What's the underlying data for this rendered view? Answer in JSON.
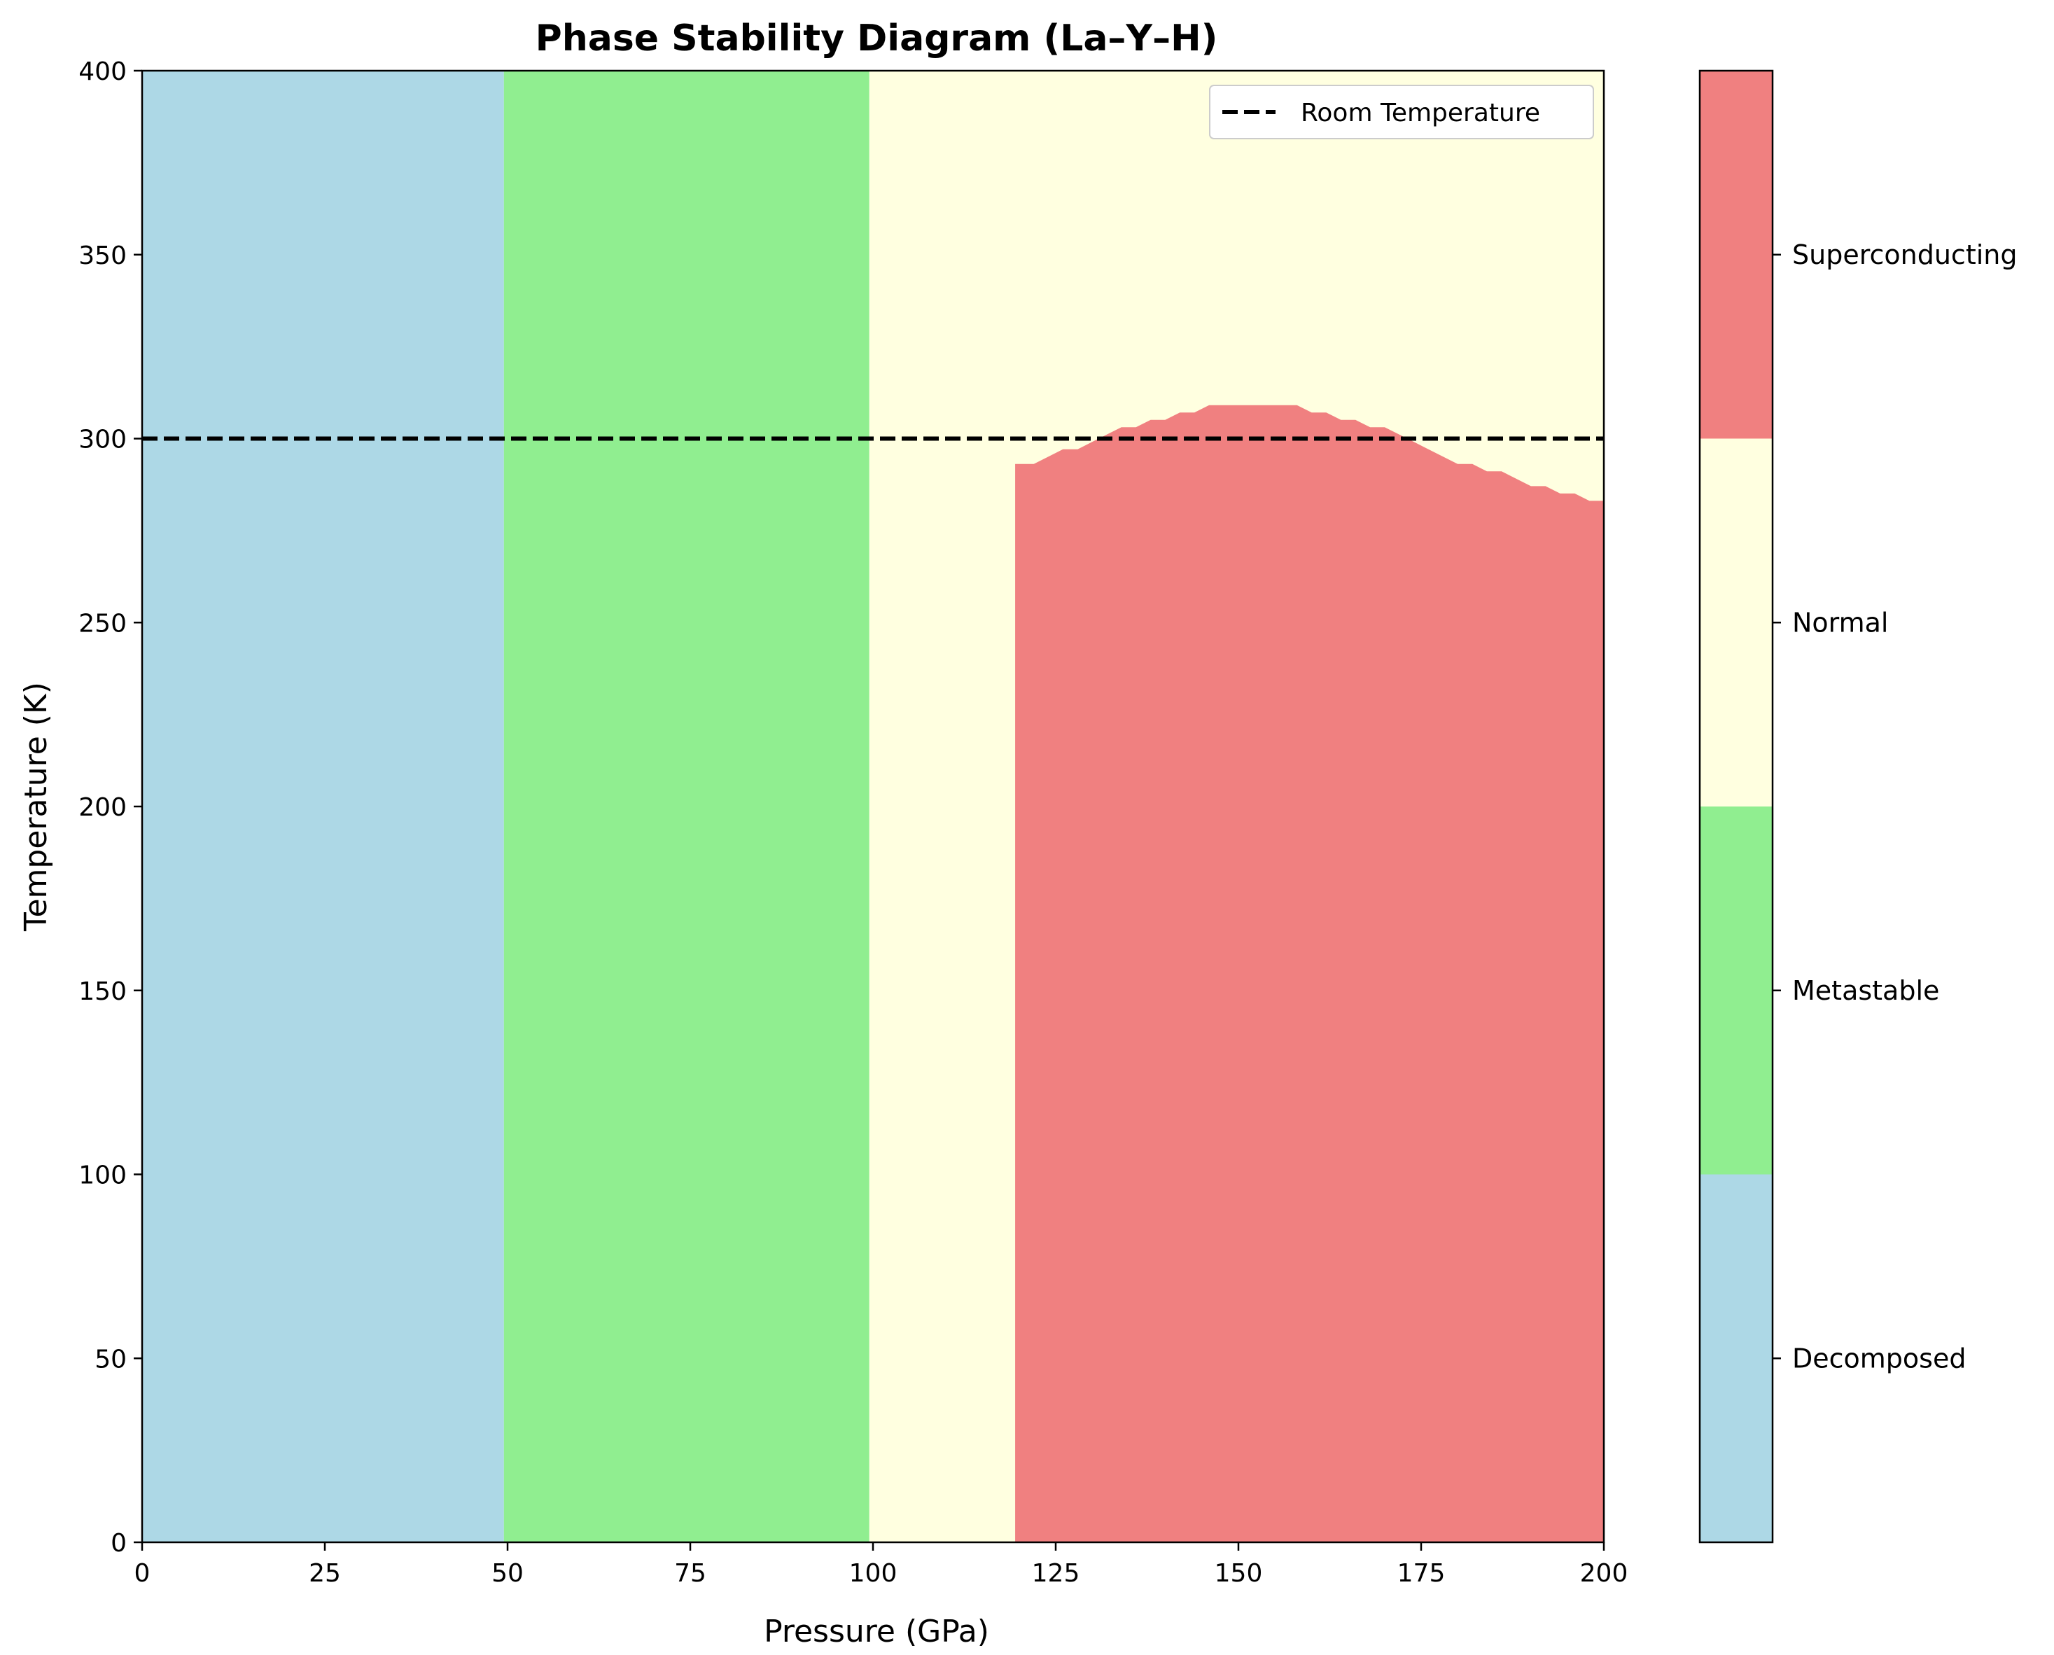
{
  "chart_data": {
    "type": "heatmap",
    "title": "Phase Stability Diagram (La–Y–H)",
    "xlabel": "Pressure (GPa)",
    "ylabel": "Temperature (K)",
    "xlim": [
      0,
      200
    ],
    "ylim": [
      0,
      400
    ],
    "x_ticks": [
      0,
      25,
      50,
      75,
      100,
      125,
      150,
      175,
      200
    ],
    "y_ticks": [
      0,
      50,
      100,
      150,
      200,
      250,
      300,
      350,
      400
    ],
    "grid": false,
    "phases": [
      {
        "name": "Decomposed",
        "color": "#add8e6"
      },
      {
        "name": "Metastable",
        "color": "#90ee90"
      },
      {
        "name": "Normal",
        "color": "#ffffe0"
      },
      {
        "name": "Superconducting",
        "color": "#f08080"
      }
    ],
    "regions": [
      {
        "phase": "Decomposed",
        "pressure_range": [
          0,
          49.5
        ],
        "temperature_range": [
          0,
          400
        ]
      },
      {
        "phase": "Metastable",
        "pressure_range": [
          49.5,
          99.5
        ],
        "temperature_range": [
          0,
          400
        ]
      },
      {
        "phase": "Normal",
        "pressure_range": [
          99.5,
          200
        ],
        "temperature_range": [
          0,
          400
        ]
      }
    ],
    "superconducting_boundary": {
      "pressure": [
        119.5,
        122,
        124,
        126,
        128,
        130,
        132,
        134,
        136,
        138,
        140,
        142,
        144,
        146,
        148,
        150,
        152,
        154,
        156,
        158,
        160,
        162,
        164,
        166,
        168,
        170,
        172,
        174,
        176,
        178,
        180,
        182,
        184,
        186,
        188,
        190,
        192,
        194,
        196,
        198,
        200
      ],
      "tc": [
        293,
        293,
        295,
        297,
        297,
        299,
        301,
        303,
        303,
        305,
        305,
        307,
        307,
        309,
        309,
        309,
        309,
        309,
        309,
        309,
        307,
        307,
        305,
        305,
        303,
        303,
        301,
        299,
        297,
        295,
        293,
        293,
        291,
        291,
        289,
        287,
        287,
        285,
        285,
        283,
        283
      ]
    },
    "reference_lines": [
      {
        "name": "Room Temperature",
        "temperature": 300,
        "style": "dashed",
        "color": "#000000"
      }
    ],
    "legend": {
      "entries": [
        "Room Temperature"
      ],
      "placement": "top-right"
    },
    "colorbar": {
      "labels": [
        "Decomposed",
        "Metastable",
        "Normal",
        "Superconducting"
      ],
      "placement": "right"
    }
  }
}
